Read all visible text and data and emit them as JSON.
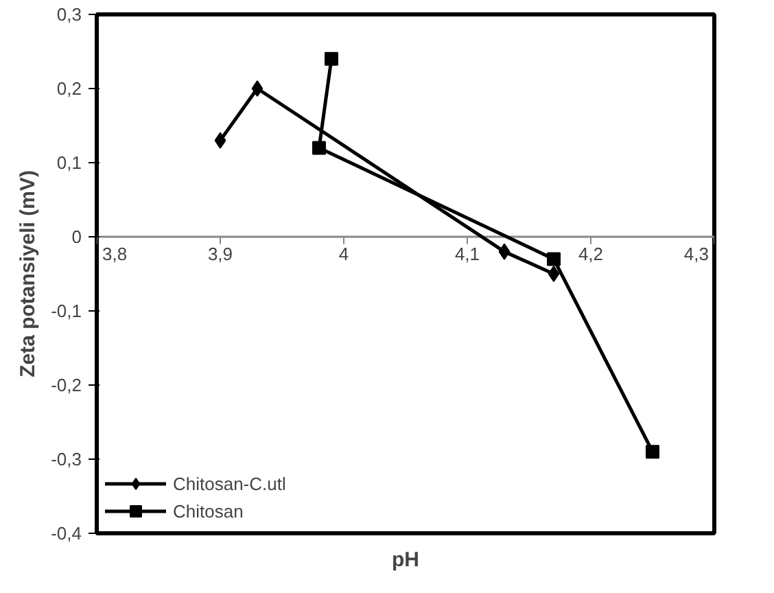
{
  "chart_data": {
    "type": "line",
    "xlabel": "pH",
    "ylabel": "Zeta potansiyeli (mV)",
    "xlim": [
      3.8,
      4.3
    ],
    "ylim": [
      -0.4,
      0.3
    ],
    "xticks": [
      {
        "value": 3.8,
        "label": "3,8"
      },
      {
        "value": 3.9,
        "label": "3,9"
      },
      {
        "value": 4.0,
        "label": "4"
      },
      {
        "value": 4.1,
        "label": "4,1"
      },
      {
        "value": 4.2,
        "label": "4,2"
      },
      {
        "value": 4.3,
        "label": "4,3"
      }
    ],
    "yticks": [
      {
        "value": -0.4,
        "label": "-0,4"
      },
      {
        "value": -0.3,
        "label": "-0,3"
      },
      {
        "value": -0.2,
        "label": "-0,2"
      },
      {
        "value": -0.1,
        "label": "-0,1"
      },
      {
        "value": 0,
        "label": "0"
      },
      {
        "value": 0.1,
        "label": "0,1"
      },
      {
        "value": 0.2,
        "label": "0,2"
      },
      {
        "value": 0.3,
        "label": "0,3"
      }
    ],
    "grid": false,
    "legend": "bottom left",
    "series": [
      {
        "name": "Chitosan-C.utl",
        "color": "#000000",
        "marker": "diamond",
        "x": [
          3.9,
          3.93,
          4.13,
          4.17
        ],
        "values": [
          0.13,
          0.2,
          -0.02,
          -0.05
        ]
      },
      {
        "name": "Chitosan",
        "color": "#000000",
        "marker": "square",
        "x": [
          3.99,
          3.98,
          4.17,
          4.25
        ],
        "values": [
          0.24,
          0.12,
          -0.03,
          -0.29
        ]
      }
    ]
  }
}
